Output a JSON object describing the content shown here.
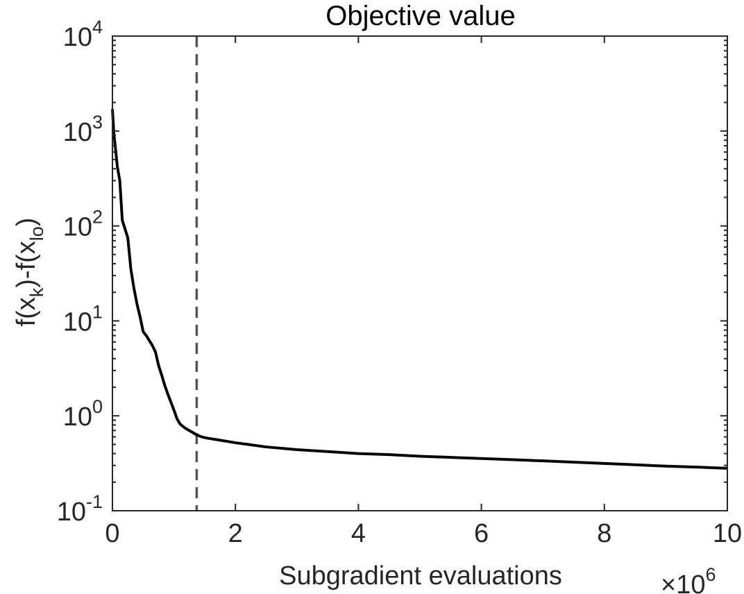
{
  "chart_data": {
    "type": "line",
    "title": "Objective value",
    "xlabel": "Subgradient evaluations",
    "ylabel": "f(x_k)-f(x_lo)",
    "ylabel_parts": {
      "f1": "f(x",
      "sub1": "k",
      "mid": ")-f(x",
      "sub2": "lo",
      "end": ")"
    },
    "x_multiplier": {
      "times": "×10",
      "exp": "6"
    },
    "xlim": [
      0,
      10
    ],
    "ylim": [
      0.1,
      10000
    ],
    "yscale": "log",
    "grid": false,
    "box": true,
    "x_ticks": [
      {
        "value": 0,
        "label": "0"
      },
      {
        "value": 2,
        "label": "2"
      },
      {
        "value": 4,
        "label": "4"
      },
      {
        "value": 6,
        "label": "6"
      },
      {
        "value": 8,
        "label": "8"
      },
      {
        "value": 10,
        "label": "10"
      }
    ],
    "y_ticks": [
      {
        "value": 0.1,
        "base": "10",
        "exp": "-1"
      },
      {
        "value": 1,
        "base": "10",
        "exp": "0"
      },
      {
        "value": 10,
        "base": "10",
        "exp": "1"
      },
      {
        "value": 100,
        "base": "10",
        "exp": "2"
      },
      {
        "value": 1000,
        "base": "10",
        "exp": "3"
      },
      {
        "value": 10000,
        "base": "10",
        "exp": "4"
      }
    ],
    "vline": {
      "x": 1.37,
      "style": "dashed",
      "color": "#555555"
    },
    "series": [
      {
        "color": "#000000",
        "x": [
          0.0,
          0.02,
          0.05,
          0.08,
          0.12,
          0.16,
          0.2,
          0.25,
          0.3,
          0.35,
          0.4,
          0.45,
          0.5,
          0.55,
          0.6,
          0.65,
          0.7,
          0.75,
          0.8,
          0.85,
          0.9,
          0.95,
          1.0,
          1.05,
          1.1,
          1.15,
          1.2,
          1.3,
          1.37,
          1.45,
          1.55,
          1.7,
          1.85,
          2.0,
          2.2,
          2.5,
          3.0,
          3.5,
          4.0,
          4.5,
          5.0,
          5.5,
          6.0,
          6.5,
          7.0,
          7.5,
          8.0,
          8.5,
          9.0,
          9.5,
          10.0
        ],
        "y": [
          1700,
          1000,
          650,
          420,
          300,
          115,
          95,
          75,
          35,
          22,
          15,
          11,
          7.7,
          7.0,
          6.2,
          5.5,
          4.7,
          3.4,
          2.7,
          2.1,
          1.7,
          1.4,
          1.15,
          0.93,
          0.82,
          0.77,
          0.73,
          0.67,
          0.63,
          0.6,
          0.58,
          0.56,
          0.54,
          0.52,
          0.5,
          0.47,
          0.44,
          0.42,
          0.4,
          0.39,
          0.375,
          0.365,
          0.355,
          0.345,
          0.335,
          0.325,
          0.315,
          0.305,
          0.295,
          0.288,
          0.28
        ]
      }
    ]
  }
}
